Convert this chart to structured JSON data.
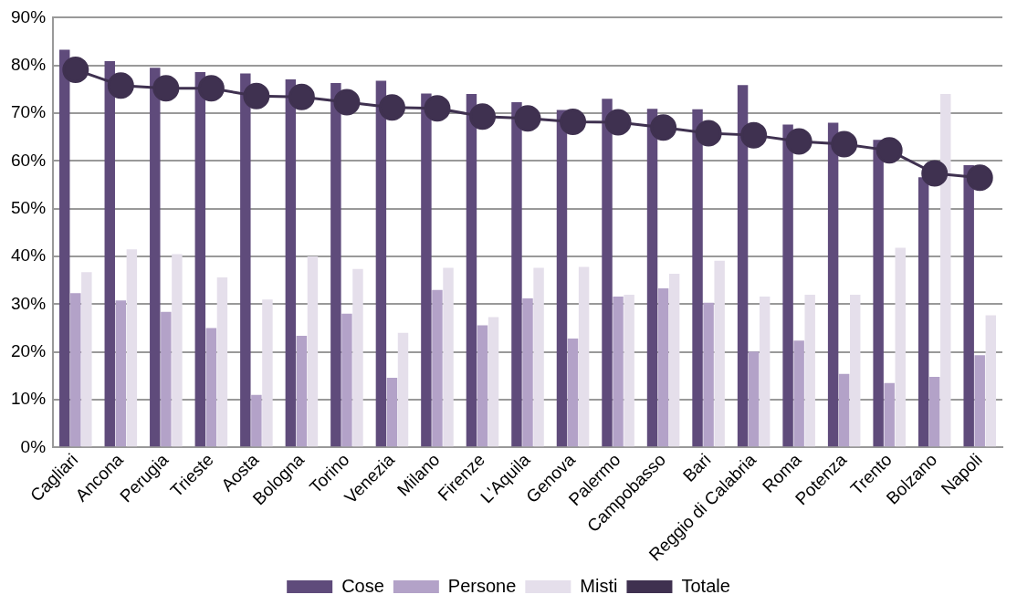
{
  "chart_data": {
    "type": "bar",
    "categories": [
      "Cagliari",
      "Ancona",
      "Perugia",
      "Trieste",
      "Aosta",
      "Bologna",
      "Torino",
      "Venezia",
      "Milano",
      "Firenze",
      "L'Aquila",
      "Genova",
      "Palermo",
      "Campobasso",
      "Bari",
      "Reggio di Calabria",
      "Roma",
      "Potenza",
      "Trento",
      "Bolzano",
      "Napoli"
    ],
    "series": [
      {
        "name": "Cose",
        "color": "#5f4b7b",
        "values": [
          83.3,
          80.9,
          79.5,
          78.6,
          78.3,
          77.1,
          76.3,
          76.8,
          74.1,
          74.0,
          72.3,
          70.7,
          73.0,
          70.9,
          70.8,
          75.9,
          67.6,
          68.0,
          64.4,
          56.6,
          59.1
        ]
      },
      {
        "name": "Persone",
        "color": "#b3a2c8",
        "values": [
          32.3,
          30.8,
          28.4,
          25.0,
          11.0,
          23.4,
          28.0,
          14.6,
          33.0,
          25.6,
          31.2,
          22.8,
          31.6,
          33.3,
          30.3,
          20.1,
          22.4,
          15.4,
          13.5,
          14.8,
          19.3
        ]
      },
      {
        "name": "Misti",
        "color": "#e5dfeb",
        "values": [
          36.7,
          41.5,
          40.5,
          35.6,
          31.0,
          40.0,
          37.4,
          24.0,
          37.6,
          27.3,
          37.6,
          37.8,
          32.0,
          36.4,
          39.1,
          31.6,
          32.0,
          32.0,
          41.8,
          74.0,
          27.7
        ]
      },
      {
        "name": "Totale",
        "type": "line",
        "color": "#3f3150",
        "marker": "circle",
        "values": [
          79.1,
          75.8,
          75.2,
          75.2,
          73.6,
          73.4,
          72.3,
          71.2,
          71.0,
          69.3,
          68.9,
          68.2,
          68.1,
          67.0,
          65.8,
          65.4,
          64.1,
          63.5,
          62.2,
          57.4,
          56.5
        ]
      }
    ],
    "ylim": [
      0,
      90
    ],
    "yticks": [
      {
        "value": 0,
        "label": "0%"
      },
      {
        "value": 10,
        "label": "10%"
      },
      {
        "value": 20,
        "label": "20%"
      },
      {
        "value": 30,
        "label": "30%"
      },
      {
        "value": 40,
        "label": "40%"
      },
      {
        "value": 50,
        "label": "50%"
      },
      {
        "value": 60,
        "label": "60%"
      },
      {
        "value": 70,
        "label": "70%"
      },
      {
        "value": 80,
        "label": "80%"
      },
      {
        "value": 90,
        "label": "90%"
      }
    ],
    "grid": "y",
    "legend": "bottom"
  }
}
